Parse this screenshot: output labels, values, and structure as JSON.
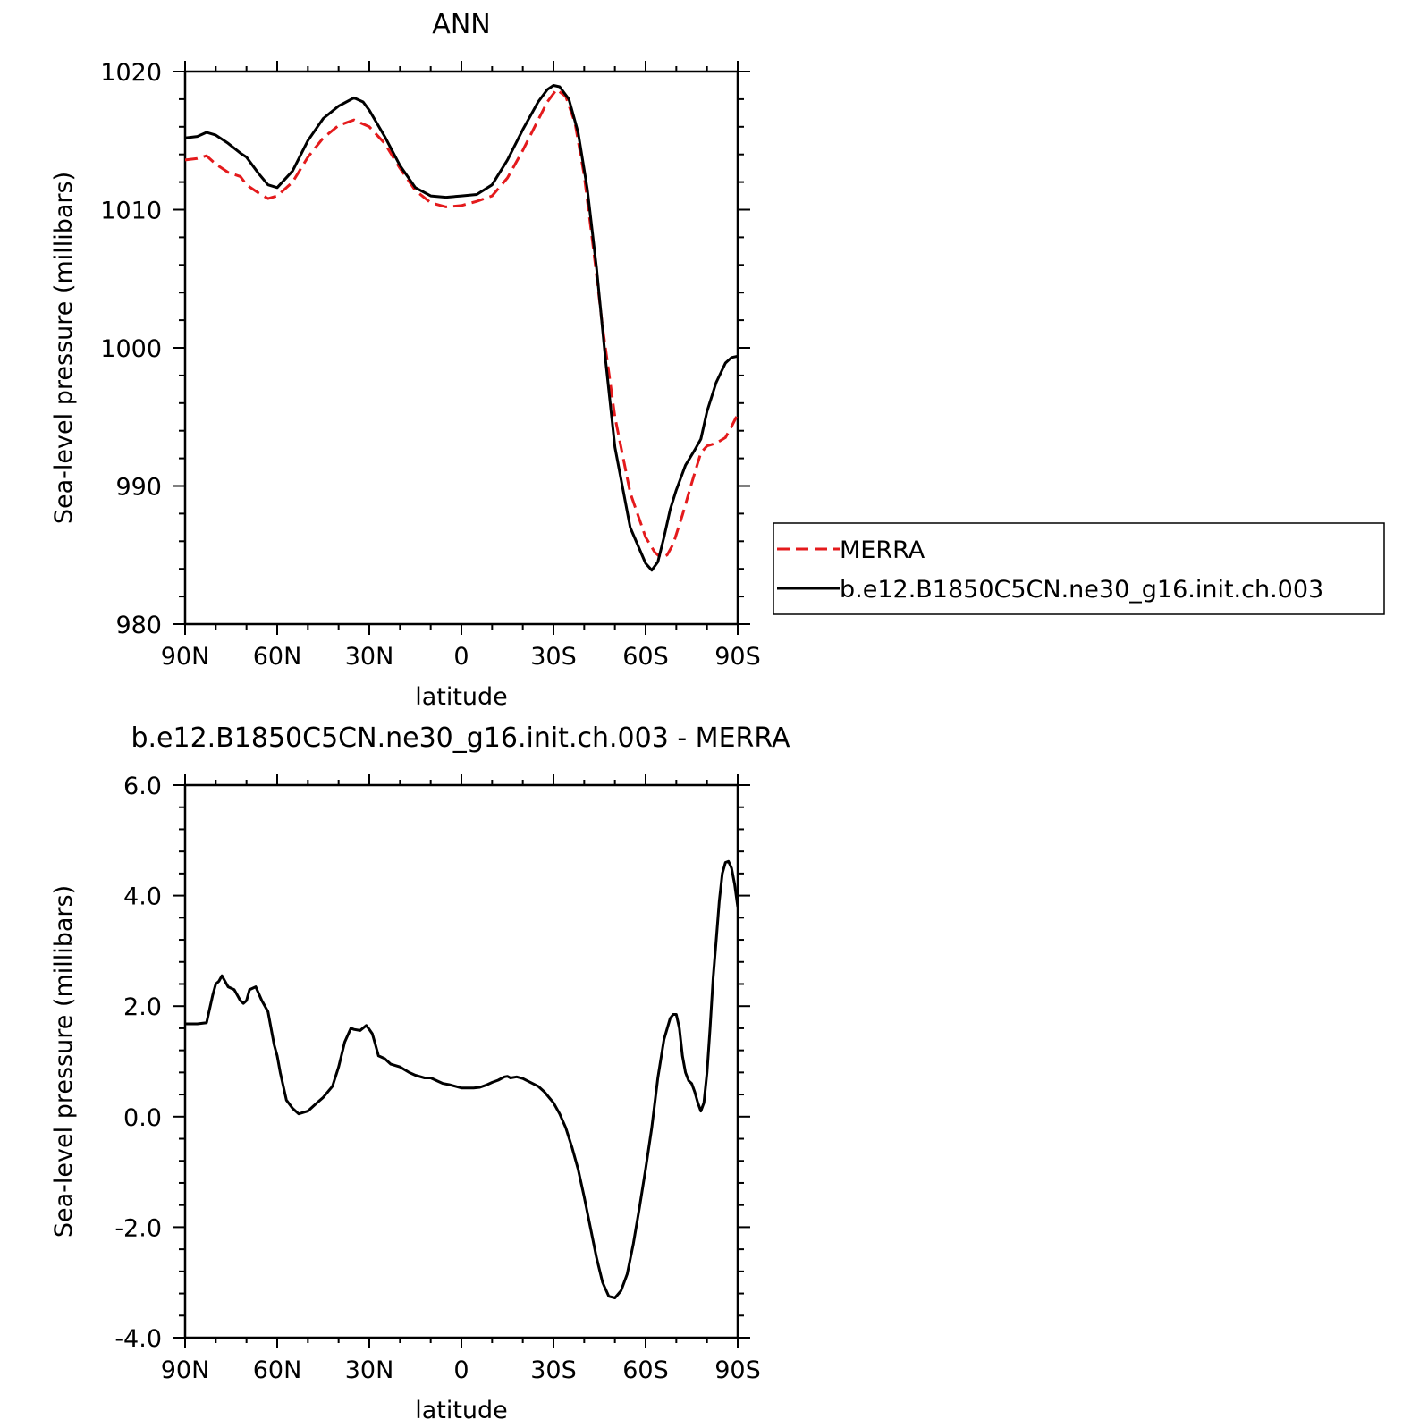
{
  "chart_data": [
    {
      "type": "line",
      "title": "ANN",
      "xlabel": "latitude",
      "ylabel": "Sea-level pressure (millibars)",
      "xlim": [
        90,
        -90
      ],
      "ylim": [
        980,
        1020
      ],
      "x_unit": "degrees latitude (positive = N, negative = S)",
      "xticks": [
        {
          "value": 90,
          "label": "90N"
        },
        {
          "value": 60,
          "label": "60N"
        },
        {
          "value": 30,
          "label": "30N"
        },
        {
          "value": 0,
          "label": "0"
        },
        {
          "value": -30,
          "label": "30S"
        },
        {
          "value": -60,
          "label": "60S"
        },
        {
          "value": -90,
          "label": "90S"
        }
      ],
      "yticks": [
        {
          "value": 1020,
          "label": "1020"
        },
        {
          "value": 1010,
          "label": "1010"
        },
        {
          "value": 1000,
          "label": "1000"
        },
        {
          "value": 990,
          "label": "990"
        },
        {
          "value": 980,
          "label": "980"
        }
      ],
      "legend": "right",
      "series": [
        {
          "name": "MERRA",
          "color": "#e41a1c",
          "dash": "dashed",
          "x": [
            90,
            86,
            83,
            80,
            76,
            72,
            70,
            66,
            63,
            60,
            55,
            50,
            45,
            40,
            35,
            30,
            25,
            20,
            15,
            10,
            5,
            0,
            -5,
            -10,
            -15,
            -20,
            -25,
            -28,
            -31,
            -34,
            -37,
            -40,
            -43,
            -46,
            -50,
            -55,
            -60,
            -63,
            -65,
            -67,
            -69,
            -72,
            -75,
            -78,
            -80,
            -83,
            -86,
            -88,
            -90
          ],
          "y": [
            1013.6,
            1013.7,
            1013.9,
            1013.3,
            1012.7,
            1012.4,
            1011.8,
            1011.2,
            1010.8,
            1011.0,
            1012.0,
            1013.8,
            1015.2,
            1016.1,
            1016.5,
            1016.0,
            1014.8,
            1013.0,
            1011.4,
            1010.5,
            1010.2,
            1010.3,
            1010.6,
            1011.0,
            1012.3,
            1014.3,
            1016.5,
            1017.8,
            1018.7,
            1018.2,
            1016.3,
            1012.5,
            1007.2,
            1001.5,
            995.0,
            989.5,
            986.3,
            985.2,
            984.8,
            985.0,
            985.8,
            987.9,
            990.2,
            992.4,
            992.9,
            993.1,
            993.5,
            994.3,
            995.2
          ]
        },
        {
          "name": "b.e12.B1850C5CN.ne30_g16.init.ch.003",
          "color": "#000000",
          "dash": "solid",
          "x": [
            90,
            86,
            83,
            80,
            76,
            72,
            70,
            66,
            63,
            60,
            55,
            50,
            45,
            40,
            35,
            32,
            30,
            25,
            20,
            15,
            10,
            5,
            0,
            -5,
            -10,
            -15,
            -20,
            -25,
            -28,
            -30,
            -32,
            -35,
            -38,
            -41,
            -44,
            -47,
            -50,
            -55,
            -60,
            -62,
            -64,
            -66,
            -68,
            -70,
            -73,
            -76,
            -78,
            -80,
            -83,
            -86,
            -88,
            -90
          ],
          "y": [
            1015.2,
            1015.3,
            1015.6,
            1015.4,
            1014.8,
            1014.1,
            1013.8,
            1012.6,
            1011.8,
            1011.6,
            1012.8,
            1015.0,
            1016.6,
            1017.5,
            1018.1,
            1017.8,
            1017.2,
            1015.3,
            1013.2,
            1011.6,
            1011.0,
            1010.9,
            1011.0,
            1011.1,
            1011.8,
            1013.6,
            1015.8,
            1017.8,
            1018.7,
            1019.0,
            1018.9,
            1018.0,
            1015.6,
            1011.5,
            1005.8,
            999.0,
            992.8,
            987.0,
            984.4,
            983.9,
            984.5,
            986.3,
            988.3,
            989.7,
            991.5,
            992.6,
            993.4,
            995.4,
            997.5,
            998.9,
            999.3,
            999.4
          ]
        }
      ]
    },
    {
      "type": "line",
      "title": "b.e12.B1850C5CN.ne30_g16.init.ch.003 - MERRA",
      "xlabel": "latitude",
      "ylabel": "Sea-level pressure (millibars)",
      "xlim": [
        90,
        -90
      ],
      "ylim": [
        -4.0,
        6.0
      ],
      "x_unit": "degrees latitude (positive = N, negative = S)",
      "xticks": [
        {
          "value": 90,
          "label": "90N"
        },
        {
          "value": 60,
          "label": "60N"
        },
        {
          "value": 30,
          "label": "30N"
        },
        {
          "value": 0,
          "label": "0"
        },
        {
          "value": -30,
          "label": "30S"
        },
        {
          "value": -60,
          "label": "60S"
        },
        {
          "value": -90,
          "label": "90S"
        }
      ],
      "yticks": [
        {
          "value": 6.0,
          "label": "6.0"
        },
        {
          "value": 4.0,
          "label": "4.0"
        },
        {
          "value": 2.0,
          "label": "2.0"
        },
        {
          "value": 0.0,
          "label": "0.0"
        },
        {
          "value": -2.0,
          "label": "-2.0"
        },
        {
          "value": -4.0,
          "label": "-4.0"
        }
      ],
      "legend": "none",
      "series": [
        {
          "color": "#000000",
          "dash": "solid",
          "x": [
            90,
            86,
            83,
            81,
            80,
            79,
            78,
            76,
            74,
            72,
            71,
            70,
            69,
            67,
            65,
            63,
            61,
            60,
            59,
            57,
            55,
            53,
            50,
            47,
            45,
            42,
            40,
            38,
            36,
            35,
            33,
            31,
            30,
            29,
            28,
            27,
            25,
            23,
            20,
            17,
            15,
            12,
            10,
            8,
            6,
            4,
            2,
            0,
            -2,
            -4,
            -6,
            -8,
            -10,
            -12,
            -14,
            -15,
            -16,
            -18,
            -20,
            -25,
            -27,
            -30,
            -32,
            -34,
            -36,
            -38,
            -40,
            -42,
            -44,
            -46,
            -48,
            -50,
            -52,
            -54,
            -56,
            -58,
            -60,
            -62,
            -64,
            -66,
            -68,
            -69,
            -70,
            -71,
            -72,
            -73,
            -74,
            -75,
            -76,
            -77,
            -78,
            -79,
            -80,
            -81,
            -82,
            -83,
            -84,
            -85,
            -86,
            -87,
            -88,
            -89,
            -90
          ],
          "y": [
            1.68,
            1.68,
            1.7,
            2.2,
            2.4,
            2.45,
            2.55,
            2.35,
            2.3,
            2.1,
            2.05,
            2.1,
            2.3,
            2.35,
            2.1,
            1.9,
            1.3,
            1.1,
            0.8,
            0.3,
            0.15,
            0.05,
            0.1,
            0.25,
            0.35,
            0.55,
            0.9,
            1.35,
            1.6,
            1.58,
            1.56,
            1.65,
            1.58,
            1.5,
            1.3,
            1.1,
            1.05,
            0.95,
            0.9,
            0.8,
            0.75,
            0.7,
            0.7,
            0.65,
            0.6,
            0.58,
            0.55,
            0.52,
            0.52,
            0.52,
            0.53,
            0.57,
            0.62,
            0.66,
            0.72,
            0.73,
            0.7,
            0.72,
            0.69,
            0.55,
            0.45,
            0.25,
            0.05,
            -0.2,
            -0.55,
            -0.95,
            -1.45,
            -2.0,
            -2.55,
            -3.0,
            -3.25,
            -3.28,
            -3.15,
            -2.85,
            -2.3,
            -1.65,
            -0.95,
            -0.2,
            0.7,
            1.4,
            1.78,
            1.85,
            1.85,
            1.6,
            1.1,
            0.8,
            0.65,
            0.6,
            0.45,
            0.25,
            0.1,
            0.25,
            0.8,
            1.6,
            2.5,
            3.2,
            3.9,
            4.4,
            4.6,
            4.62,
            4.5,
            4.2,
            3.8
          ]
        }
      ]
    }
  ]
}
